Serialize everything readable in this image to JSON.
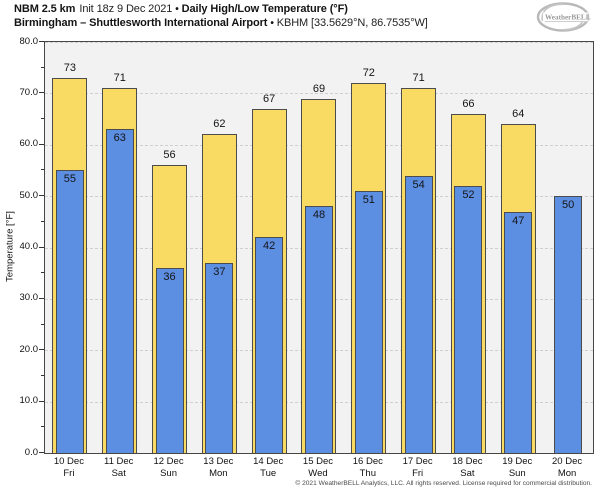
{
  "header": {
    "model": "NBM 2.5 km",
    "init": "Init 18z 9 Dec 2021",
    "sep": "•",
    "product": "Daily High/Low Temperature (°F)",
    "station": "Birmingham – Shuttlesworth International Airport",
    "station_id": "KBHM [33.5629°N, 86.7535°W]"
  },
  "logo": {
    "brand": "WeatherBELL"
  },
  "chart_data": {
    "type": "bar",
    "title": "NBM 2.5 km Init 18z 9 Dec 2021 • Daily High/Low Temperature (°F)",
    "subtitle": "Birmingham – Shuttlesworth International Airport • KBHM [33.5629°N, 86.7535°W]",
    "ylabel": "Temperature [°F]",
    "ylim": [
      0,
      80
    ],
    "ytick_labels": [
      "0.0",
      "10.0",
      "20.0",
      "30.0",
      "40.0",
      "50.0",
      "60.0",
      "70.0",
      "80.0"
    ],
    "grid": "horizontal dashed every 10, minor ticks every 5, legend none",
    "plot_background": "#f2f2f2",
    "categories": [
      {
        "date": "10 Dec",
        "day": "Fri"
      },
      {
        "date": "11 Dec",
        "day": "Sat"
      },
      {
        "date": "12 Dec",
        "day": "Sun"
      },
      {
        "date": "13 Dec",
        "day": "Mon"
      },
      {
        "date": "14 Dec",
        "day": "Tue"
      },
      {
        "date": "15 Dec",
        "day": "Wed"
      },
      {
        "date": "16 Dec",
        "day": "Thu"
      },
      {
        "date": "17 Dec",
        "day": "Fri"
      },
      {
        "date": "18 Dec",
        "day": "Sat"
      },
      {
        "date": "19 Dec",
        "day": "Sun"
      },
      {
        "date": "20 Dec",
        "day": "Mon"
      }
    ],
    "series": [
      {
        "name": "High",
        "color": "#f9da62",
        "values": [
          73,
          71,
          56,
          62,
          67,
          69,
          72,
          71,
          66,
          64,
          null
        ]
      },
      {
        "name": "Low",
        "color": "#5c8ee2",
        "values": [
          55,
          63,
          36,
          37,
          42,
          48,
          51,
          54,
          52,
          47,
          50
        ]
      }
    ]
  },
  "footer": {
    "copyright": "© 2021 WeatherBELL Analytics, LLC. All rights reserved. License required for commercial distribution."
  }
}
